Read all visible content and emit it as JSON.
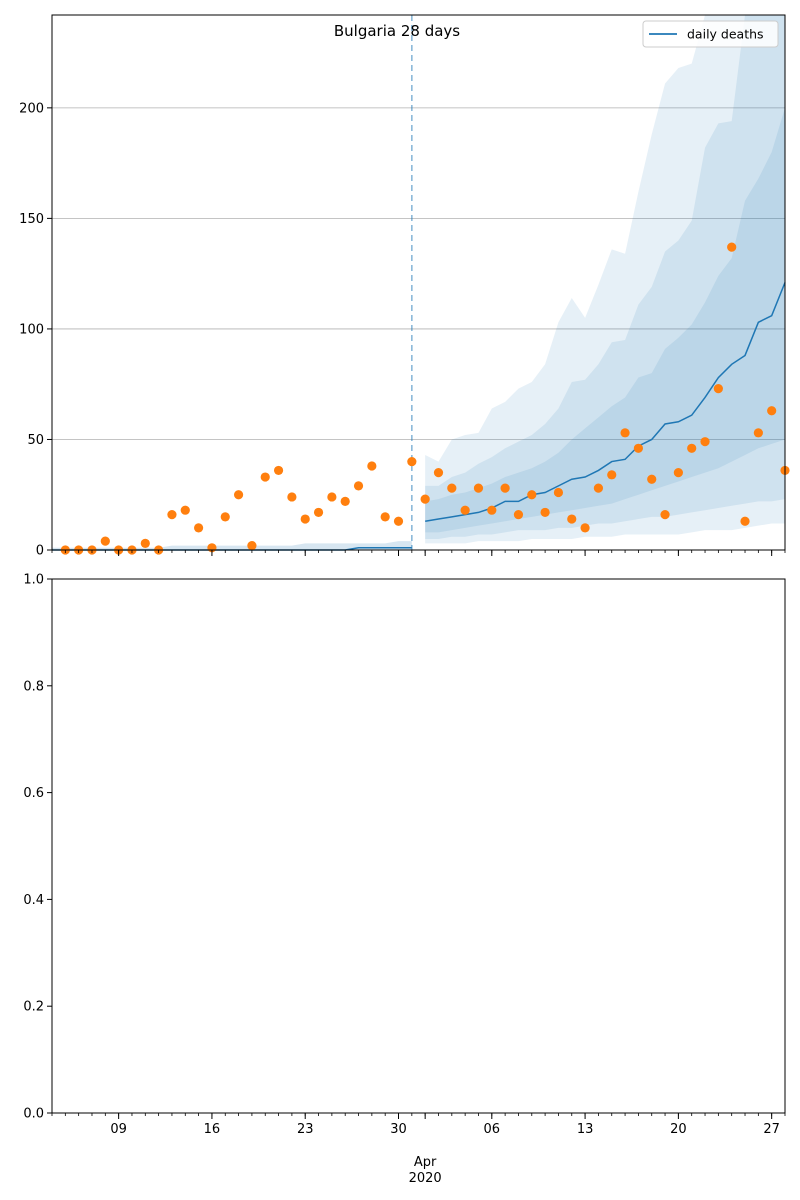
{
  "chart_data": [
    {
      "type": "line",
      "title": "Bulgaria 28 days",
      "xlabel": "",
      "ylabel": "",
      "x_start": "2020-03-04",
      "ylim": [
        0,
        242
      ],
      "yticks": [
        0,
        50,
        100,
        150,
        200
      ],
      "grid": "y",
      "legend": {
        "location": "top-right",
        "entries": [
          "daily deaths"
        ]
      },
      "vline_date": "2020-03-31",
      "series": [
        {
          "name": "daily deaths",
          "type": "line",
          "x_start": "2020-03-04",
          "values": [
            0,
            0,
            0,
            0,
            0,
            0,
            0,
            0,
            0,
            0,
            0,
            0,
            0,
            0,
            0,
            0,
            0,
            0,
            0,
            0,
            0,
            0,
            0,
            1,
            1,
            1,
            1,
            1,
            13,
            14,
            15,
            16,
            17,
            19,
            22,
            22,
            25,
            26,
            29,
            32,
            33,
            36,
            40,
            41,
            47,
            50,
            57,
            58,
            61,
            69,
            78,
            84,
            88,
            103,
            106,
            121
          ]
        },
        {
          "name": "",
          "type": "scatter",
          "x_start": "2020-03-05",
          "values": [
            0,
            0,
            0,
            4,
            0,
            0,
            3,
            0,
            16,
            18,
            10,
            1,
            15,
            25,
            2,
            33,
            36,
            24,
            14,
            17,
            24,
            22,
            29,
            38,
            15,
            13,
            40,
            23,
            35,
            28,
            18,
            28,
            18,
            28,
            16,
            25,
            17,
            26,
            14,
            10,
            28,
            34,
            53,
            46,
            32,
            16,
            35,
            46,
            49,
            73,
            137,
            13,
            53,
            63,
            36
          ]
        }
      ],
      "bands": [
        {
          "lower": [
            3,
            3,
            3,
            3,
            4,
            4,
            4,
            4,
            5,
            5,
            5,
            5,
            6,
            6,
            6,
            7,
            7,
            7,
            7,
            7,
            8,
            9,
            9,
            9,
            10,
            11,
            12,
            12
          ],
          "upper": [
            43,
            40,
            50,
            52,
            53,
            64,
            67,
            73,
            76,
            84,
            103,
            114,
            105,
            120,
            136,
            134,
            162,
            188,
            211,
            218,
            220,
            242,
            242,
            242,
            242,
            242,
            242,
            242
          ]
        },
        {
          "lower": [
            5,
            5,
            6,
            6,
            7,
            7,
            8,
            9,
            9,
            9,
            10,
            10,
            11,
            12,
            12,
            13,
            14,
            15,
            15,
            16,
            17,
            18,
            19,
            20,
            21,
            22,
            22,
            23
          ],
          "upper": [
            29,
            29,
            33,
            35,
            39,
            42,
            46,
            49,
            52,
            57,
            64,
            76,
            77,
            84,
            94,
            95,
            111,
            119,
            135,
            140,
            149,
            182,
            193,
            194,
            242,
            242,
            242,
            242
          ]
        },
        {
          "lower": [
            8,
            8,
            9,
            10,
            11,
            12,
            13,
            14,
            15,
            16,
            17,
            18,
            19,
            20,
            21,
            23,
            25,
            27,
            29,
            31,
            33,
            35,
            37,
            40,
            43,
            46,
            48,
            50
          ],
          "upper": [
            22,
            23,
            25,
            26,
            28,
            30,
            33,
            35,
            37,
            40,
            44,
            50,
            55,
            60,
            65,
            69,
            78,
            80,
            91,
            96,
            102,
            112,
            124,
            132,
            158,
            168,
            180,
            200
          ]
        }
      ],
      "history_band": {
        "lower": [
          0,
          0,
          0,
          0,
          0,
          0,
          0,
          0,
          0,
          0,
          0,
          0,
          0,
          0,
          0,
          0,
          0,
          0,
          0,
          0,
          0,
          0,
          0,
          0,
          0,
          0,
          0,
          0
        ],
        "upper": [
          1,
          1,
          1,
          1,
          1,
          1,
          1,
          1,
          1,
          2,
          2,
          2,
          2,
          2,
          2,
          2,
          2,
          2,
          2,
          3,
          3,
          3,
          3,
          3,
          3,
          3,
          4,
          4
        ]
      },
      "xticks_major": [
        "09",
        "16",
        "23",
        "30",
        "Apr\n2020",
        "06",
        "13",
        "20",
        "27"
      ]
    },
    {
      "type": "line",
      "title": "",
      "ylim": [
        0,
        1
      ],
      "yticks": [
        "0.0",
        "0.2",
        "0.4",
        "0.6",
        "0.8",
        "1.0"
      ],
      "xticks_major": [
        "09",
        "16",
        "23",
        "30",
        "Apr\n2020",
        "06",
        "13",
        "20",
        "27"
      ],
      "series": []
    }
  ],
  "colors": {
    "line": "#1f77b4",
    "dots": "#ff7f0e",
    "band": "#1f77b4",
    "grid": "#b0b0b0"
  }
}
